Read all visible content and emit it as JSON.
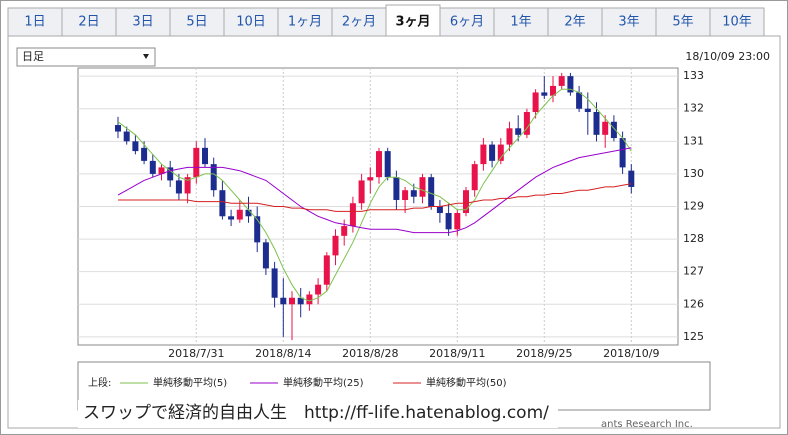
{
  "tabs": [
    "1日",
    "2日",
    "3日",
    "5日",
    "10日",
    "1ヶ月",
    "2ヶ月",
    "3ヶ月",
    "6ヶ月",
    "1年",
    "2年",
    "3年",
    "5年",
    "10年"
  ],
  "active_tab": "3ヶ月",
  "period_select": "日足",
  "timestamp": "18/10/09 23:00",
  "watermark": "スワップで経済的自由人生　http://ff-life.hatenablog.com/",
  "credit": "ants Research Inc.",
  "chart_data": {
    "type": "candlestick",
    "categories": [
      null,
      null,
      null,
      null,
      null,
      null,
      null,
      null,
      null,
      "2018/7/31",
      null,
      null,
      null,
      null,
      null,
      null,
      null,
      null,
      null,
      "2018/8/14",
      null,
      null,
      null,
      null,
      null,
      null,
      null,
      null,
      null,
      "2018/8/28",
      null,
      null,
      null,
      null,
      null,
      null,
      null,
      null,
      null,
      "2018/9/11",
      null,
      null,
      null,
      null,
      null,
      null,
      null,
      null,
      null,
      "2018/9/25",
      null,
      null,
      null,
      null,
      null,
      null,
      null,
      null,
      null,
      "2018/10/9"
    ],
    "open": [
      131.5,
      131.3,
      131.0,
      130.8,
      130.4,
      130.0,
      130.2,
      129.8,
      129.4,
      129.9,
      130.8,
      130.3,
      129.5,
      128.7,
      128.6,
      128.9,
      128.7,
      127.9,
      127.1,
      126.2,
      126.0,
      126.2,
      126.0,
      126.3,
      126.6,
      127.5,
      128.1,
      128.4,
      129.1,
      129.8,
      129.9,
      130.7,
      129.9,
      129.2,
      129.5,
      129.3,
      129.9,
      129.0,
      128.8,
      128.3,
      128.8,
      129.5,
      130.3,
      130.9,
      130.4,
      130.9,
      131.4,
      131.2,
      131.9,
      132.5,
      132.4,
      132.7,
      133.0,
      132.5,
      132.0,
      131.9,
      131.2,
      131.6,
      131.1,
      130.1
    ],
    "high": [
      131.75,
      131.45,
      131.2,
      131.0,
      130.6,
      130.3,
      130.4,
      130.0,
      130.0,
      131.0,
      131.1,
      130.5,
      129.8,
      128.9,
      129.2,
      129.3,
      129.0,
      128.0,
      127.3,
      126.8,
      126.4,
      126.5,
      126.4,
      126.8,
      127.6,
      128.3,
      128.6,
      129.3,
      130.0,
      130.2,
      130.8,
      130.8,
      130.1,
      129.6,
      129.7,
      130.0,
      130.0,
      129.2,
      129.1,
      128.9,
      129.6,
      130.4,
      131.1,
      131.0,
      131.1,
      131.6,
      131.8,
      132.0,
      132.6,
      133.0,
      133.0,
      133.1,
      133.1,
      132.7,
      132.5,
      132.2,
      131.8,
      131.8,
      131.3,
      130.3
    ],
    "low": [
      131.1,
      130.9,
      130.6,
      130.3,
      129.9,
      129.8,
      129.6,
      129.2,
      129.1,
      129.7,
      130.2,
      129.3,
      128.6,
      128.4,
      128.5,
      128.5,
      127.6,
      126.9,
      125.9,
      125.0,
      124.9,
      125.6,
      125.8,
      126.0,
      126.4,
      127.2,
      127.8,
      128.2,
      128.9,
      129.4,
      129.7,
      129.8,
      128.9,
      128.8,
      129.1,
      129.1,
      128.9,
      128.5,
      128.1,
      128.1,
      128.7,
      129.3,
      130.1,
      130.2,
      130.3,
      130.7,
      131.0,
      131.1,
      131.7,
      132.3,
      132.2,
      132.6,
      132.4,
      131.9,
      131.2,
      131.0,
      130.8,
      131.0,
      130.0,
      129.4
    ],
    "close": [
      131.3,
      131.0,
      130.7,
      130.4,
      130.0,
      130.2,
      129.8,
      129.4,
      129.9,
      130.8,
      130.3,
      129.5,
      128.7,
      128.6,
      128.9,
      128.7,
      127.9,
      127.1,
      126.2,
      126.0,
      126.2,
      126.0,
      126.3,
      126.6,
      127.5,
      128.1,
      128.4,
      129.1,
      129.8,
      129.9,
      130.7,
      129.9,
      129.2,
      129.5,
      129.3,
      129.9,
      129.0,
      128.8,
      128.3,
      128.8,
      129.5,
      130.3,
      130.9,
      130.4,
      130.9,
      131.4,
      131.2,
      131.9,
      132.5,
      132.4,
      132.7,
      133.0,
      132.5,
      132.0,
      131.9,
      131.2,
      131.6,
      131.1,
      130.2,
      129.6
    ],
    "up_color": "#e8134a",
    "down_color": "#1c2c8f",
    "legend_title": "上段:",
    "series": [
      {
        "name": "単純移動平均(5)",
        "color": "#7dc24d",
        "values": [
          131.6,
          131.4,
          131.2,
          130.9,
          130.6,
          130.3,
          130.1,
          129.9,
          129.8,
          129.9,
          130.0,
          130.0,
          129.8,
          129.5,
          129.2,
          128.9,
          128.6,
          128.2,
          127.7,
          127.1,
          126.6,
          126.2,
          126.1,
          126.2,
          126.4,
          126.9,
          127.4,
          127.9,
          128.5,
          129.1,
          129.6,
          129.9,
          129.9,
          129.8,
          129.6,
          129.5,
          129.4,
          129.3,
          129.1,
          128.9,
          128.9,
          129.2,
          129.7,
          130.1,
          130.5,
          130.8,
          131.1,
          131.4,
          131.8,
          132.1,
          132.4,
          132.6,
          132.6,
          132.5,
          132.3,
          132.0,
          131.7,
          131.4,
          131.1,
          130.7
        ]
      },
      {
        "name": "単純移動平均(25)",
        "color": "#9900cc",
        "values": [
          129.35,
          129.5,
          129.65,
          129.8,
          129.9,
          130.0,
          130.1,
          130.15,
          130.2,
          130.2,
          130.2,
          130.2,
          130.2,
          130.15,
          130.1,
          130.0,
          129.9,
          129.8,
          129.6,
          129.4,
          129.2,
          129.0,
          128.85,
          128.7,
          128.6,
          128.5,
          128.45,
          128.4,
          128.35,
          128.3,
          128.3,
          128.3,
          128.3,
          128.25,
          128.2,
          128.2,
          128.2,
          128.2,
          128.2,
          128.25,
          128.35,
          128.5,
          128.7,
          128.9,
          129.1,
          129.3,
          129.5,
          129.7,
          129.9,
          130.05,
          130.2,
          130.3,
          130.4,
          130.5,
          130.55,
          130.6,
          130.65,
          130.7,
          130.75,
          130.8
        ]
      },
      {
        "name": "単純移動平均(50)",
        "color": "#d42020",
        "values": [
          129.2,
          129.2,
          129.2,
          129.2,
          129.2,
          129.2,
          129.2,
          129.2,
          129.2,
          129.15,
          129.15,
          129.15,
          129.15,
          129.1,
          129.1,
          129.1,
          129.1,
          129.05,
          129.0,
          129.0,
          128.95,
          128.95,
          128.9,
          128.9,
          128.9,
          128.85,
          128.85,
          128.85,
          128.85,
          128.9,
          128.9,
          128.9,
          128.9,
          128.9,
          128.95,
          128.95,
          129.0,
          129.0,
          129.05,
          129.1,
          129.1,
          129.15,
          129.2,
          129.2,
          129.25,
          129.25,
          129.3,
          129.3,
          129.35,
          129.35,
          129.4,
          129.4,
          129.45,
          129.5,
          129.5,
          129.55,
          129.6,
          129.6,
          129.65,
          129.7
        ]
      }
    ],
    "ylim": [
      124.75,
      133.25
    ],
    "yticks": [
      125,
      126,
      127,
      128,
      129,
      130,
      131,
      132,
      133
    ],
    "grid": true
  }
}
